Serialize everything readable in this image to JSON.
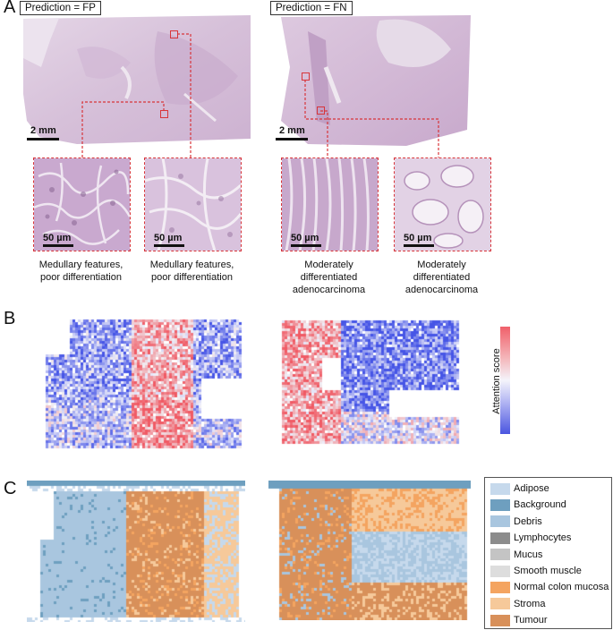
{
  "panels": {
    "A": {
      "letter": "A",
      "left_prediction": "Prediction = FP",
      "right_prediction": "Prediction = FN",
      "scale_low": "2 mm",
      "scale_high": "50 µm",
      "captions": [
        [
          "Medullary features,",
          "poor differentiation"
        ],
        [
          "Medullary features,",
          "poor differentiation"
        ],
        [
          "Moderately",
          "differentiated",
          "adenocarcinoma"
        ],
        [
          "Moderately",
          "differentiated",
          "adenocarcinoma"
        ]
      ]
    },
    "B": {
      "letter": "B",
      "colorbar_label": "Attention score"
    },
    "C": {
      "letter": "C",
      "legend": [
        {
          "name": "Adipose",
          "color": "#c6d9ec"
        },
        {
          "name": "Background",
          "color": "#6e9fbf"
        },
        {
          "name": "Debris",
          "color": "#a9c6df"
        },
        {
          "name": "Lymphocytes",
          "color": "#8c8c8c"
        },
        {
          "name": "Mucus",
          "color": "#c4c4c4"
        },
        {
          "name": "Smooth muscle",
          "color": "#dddddd"
        },
        {
          "name": "Normal colon mucosa",
          "color": "#f4a460"
        },
        {
          "name": "Stroma",
          "color": "#f6c99a"
        },
        {
          "name": "Tumour",
          "color": "#d8905a"
        }
      ]
    }
  },
  "colors": {
    "tissue_he": "#d9c6dc",
    "tissue_he_dark": "#c4a8c9",
    "attention_high": "#e8505a",
    "attention_low": "#4a55e0",
    "dashed_red": "#d8353a"
  }
}
